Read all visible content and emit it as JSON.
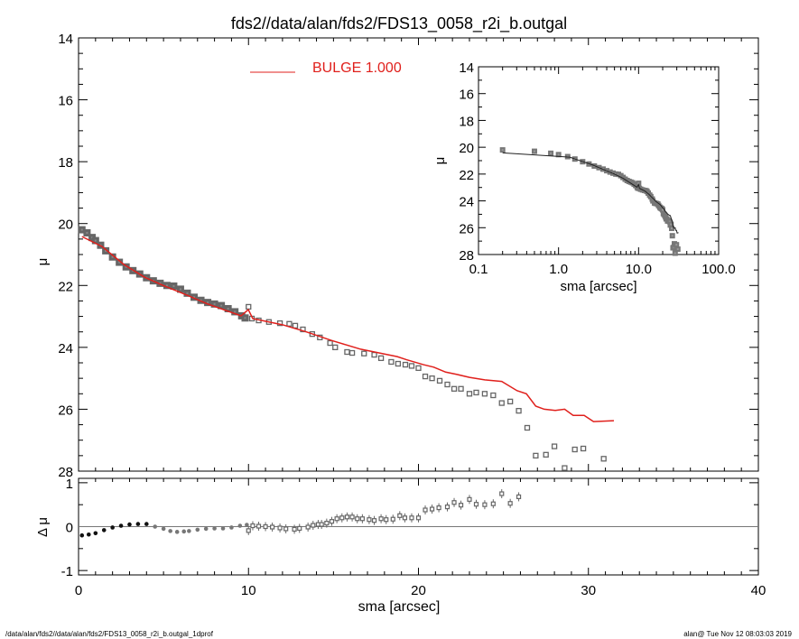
{
  "chart_data": {
    "type": "scatter",
    "title": "fds2//data/alan/fds2/FDS13_0058_r2i_b.outgal",
    "xlabel": "sma [arcsec]",
    "ylabel": "μ",
    "resid_ylabel": "Δ μ",
    "xlim": [
      0,
      40
    ],
    "ylim": [
      28,
      14
    ],
    "resid_ylim": [
      -1.1,
      1.1
    ],
    "x_ticks": [
      "0",
      "10",
      "20",
      "30",
      "40"
    ],
    "y_ticks": [
      "14",
      "16",
      "18",
      "20",
      "22",
      "24",
      "26",
      "28"
    ],
    "resid_ticks": [
      "1",
      "0",
      "-1"
    ],
    "legend": {
      "label": "BULGE  1.000",
      "color": "#e0201c",
      "placement": "top-center"
    },
    "observed": [
      [
        0.2,
        20.2
      ],
      [
        0.5,
        20.3
      ],
      [
        0.8,
        20.45
      ],
      [
        1.0,
        20.55
      ],
      [
        1.3,
        20.7
      ],
      [
        1.6,
        20.88
      ],
      [
        2.0,
        21.08
      ],
      [
        2.4,
        21.25
      ],
      [
        2.8,
        21.4
      ],
      [
        3.2,
        21.52
      ],
      [
        3.6,
        21.63
      ],
      [
        4.0,
        21.75
      ],
      [
        4.4,
        21.85
      ],
      [
        4.8,
        21.93
      ],
      [
        5.2,
        22.0
      ],
      [
        5.6,
        22.02
      ],
      [
        6.0,
        22.12
      ],
      [
        6.4,
        22.25
      ],
      [
        6.8,
        22.38
      ],
      [
        7.2,
        22.48
      ],
      [
        7.6,
        22.55
      ],
      [
        8.0,
        22.6
      ],
      [
        8.4,
        22.65
      ],
      [
        8.8,
        22.75
      ],
      [
        9.2,
        22.85
      ],
      [
        9.6,
        22.98
      ],
      [
        9.8,
        23.05
      ],
      [
        10.0,
        22.69
      ],
      [
        10.2,
        23.07
      ],
      [
        10.6,
        23.13
      ],
      [
        11.2,
        23.18
      ],
      [
        11.85,
        23.22
      ],
      [
        12.4,
        23.24
      ],
      [
        12.75,
        23.3
      ],
      [
        13.2,
        23.42
      ],
      [
        13.75,
        23.57
      ],
      [
        14.2,
        23.68
      ],
      [
        14.8,
        23.86
      ],
      [
        15.1,
        24.0
      ],
      [
        15.8,
        24.15
      ],
      [
        16.1,
        24.18
      ],
      [
        16.8,
        24.2
      ],
      [
        17.4,
        24.24
      ],
      [
        17.8,
        24.35
      ],
      [
        18.4,
        24.47
      ],
      [
        18.8,
        24.53
      ],
      [
        19.23,
        24.56
      ],
      [
        19.6,
        24.6
      ],
      [
        20.0,
        24.67
      ],
      [
        20.4,
        24.94
      ],
      [
        20.8,
        25.0
      ],
      [
        21.25,
        25.08
      ],
      [
        21.7,
        25.2
      ],
      [
        22.1,
        25.34
      ],
      [
        22.5,
        25.34
      ],
      [
        23.0,
        25.5
      ],
      [
        23.4,
        25.46
      ],
      [
        23.9,
        25.5
      ],
      [
        24.4,
        25.55
      ],
      [
        24.9,
        25.8
      ],
      [
        25.4,
        25.75
      ],
      [
        25.9,
        26.05
      ],
      [
        26.4,
        26.6
      ],
      [
        26.9,
        27.5
      ],
      [
        27.5,
        27.47
      ],
      [
        28.0,
        27.2
      ],
      [
        28.6,
        27.9
      ],
      [
        29.2,
        27.3
      ],
      [
        29.7,
        27.27
      ],
      [
        30.9,
        27.6
      ]
    ],
    "model": {
      "name": "BULGE",
      "color": "#e0201c",
      "points": [
        [
          0.2,
          20.42
        ],
        [
          1.38,
          20.74
        ],
        [
          2.66,
          21.32
        ],
        [
          3.88,
          21.73
        ],
        [
          4.94,
          21.99
        ],
        [
          6.37,
          22.31
        ],
        [
          7.6,
          22.6
        ],
        [
          9.56,
          22.98
        ],
        [
          9.99,
          22.78
        ],
        [
          10.25,
          23.07
        ],
        [
          12.0,
          23.27
        ],
        [
          13.4,
          23.5
        ],
        [
          14.9,
          23.78
        ],
        [
          16.6,
          24.06
        ],
        [
          18.75,
          24.3
        ],
        [
          19.3,
          24.4
        ],
        [
          20.3,
          24.56
        ],
        [
          20.9,
          24.64
        ],
        [
          21.6,
          24.8
        ],
        [
          22.3,
          24.88
        ],
        [
          23.0,
          24.97
        ],
        [
          23.9,
          25.05
        ],
        [
          24.9,
          25.1
        ],
        [
          25.8,
          25.4
        ],
        [
          26.35,
          25.5
        ],
        [
          26.9,
          25.9
        ],
        [
          27.4,
          26.0
        ],
        [
          28.05,
          26.04
        ],
        [
          28.6,
          26.0
        ],
        [
          29.1,
          26.2
        ],
        [
          29.75,
          26.2
        ],
        [
          30.3,
          26.4
        ],
        [
          31.5,
          26.37
        ]
      ]
    },
    "residuals": [
      [
        0.2,
        -0.2
      ],
      [
        0.6,
        -0.18
      ],
      [
        1.0,
        -0.15
      ],
      [
        1.5,
        -0.08
      ],
      [
        2.0,
        -0.02
      ],
      [
        2.5,
        0.02
      ],
      [
        3.0,
        0.05
      ],
      [
        3.5,
        0.06
      ],
      [
        4.0,
        0.06
      ],
      [
        4.5,
        0.0
      ],
      [
        5.0,
        -0.05
      ],
      [
        5.4,
        -0.1
      ],
      [
        5.8,
        -0.12
      ],
      [
        6.2,
        -0.11
      ],
      [
        6.5,
        -0.1
      ],
      [
        7.0,
        -0.07
      ],
      [
        7.5,
        -0.05
      ],
      [
        8.0,
        -0.04
      ],
      [
        8.5,
        -0.04
      ],
      [
        9.0,
        -0.02
      ],
      [
        9.5,
        0.02
      ],
      [
        9.9,
        0.04
      ],
      [
        10.0,
        -0.09
      ],
      [
        10.25,
        0.02
      ],
      [
        10.6,
        0.01
      ],
      [
        11.0,
        0.0
      ],
      [
        11.4,
        -0.01
      ],
      [
        11.85,
        -0.03
      ],
      [
        12.2,
        -0.05
      ],
      [
        12.7,
        -0.06
      ],
      [
        13.0,
        -0.04
      ],
      [
        13.5,
        -0.01
      ],
      [
        13.8,
        0.03
      ],
      [
        14.1,
        0.05
      ],
      [
        14.3,
        0.05
      ],
      [
        14.6,
        0.08
      ],
      [
        14.9,
        0.12
      ],
      [
        15.2,
        0.18
      ],
      [
        15.5,
        0.2
      ],
      [
        15.8,
        0.22
      ],
      [
        16.1,
        0.22
      ],
      [
        16.4,
        0.18
      ],
      [
        16.7,
        0.18
      ],
      [
        17.1,
        0.16
      ],
      [
        17.4,
        0.14
      ],
      [
        17.8,
        0.18
      ],
      [
        18.1,
        0.16
      ],
      [
        18.5,
        0.17
      ],
      [
        18.9,
        0.25
      ],
      [
        19.2,
        0.2
      ],
      [
        19.6,
        0.2
      ],
      [
        20.0,
        0.2
      ],
      [
        20.4,
        0.38
      ],
      [
        20.8,
        0.4
      ],
      [
        21.2,
        0.43
      ],
      [
        21.7,
        0.45
      ],
      [
        22.1,
        0.55
      ],
      [
        22.5,
        0.49
      ],
      [
        23.0,
        0.62
      ],
      [
        23.4,
        0.51
      ],
      [
        23.9,
        0.5
      ],
      [
        24.4,
        0.52
      ],
      [
        24.9,
        0.75
      ],
      [
        25.4,
        0.53
      ],
      [
        25.9,
        0.68
      ]
    ],
    "inset": {
      "xlabel": "sma [arcsec]",
      "ylabel": "μ",
      "xscale": "log",
      "xlim": [
        0.1,
        100
      ],
      "ylim": [
        28,
        14
      ],
      "x_ticks": [
        "0.1",
        "1.0",
        "10.0",
        "100.0"
      ],
      "y_ticks": [
        "14",
        "16",
        "18",
        "20",
        "22",
        "24",
        "26",
        "28"
      ]
    }
  },
  "footer": {
    "left": "/data/alan/fds2//data/alan/fds2/FDS13_0058_r2i_b.outgal_1dprof",
    "right": "alan@  Tue Nov 12 08:03:03 2019"
  }
}
